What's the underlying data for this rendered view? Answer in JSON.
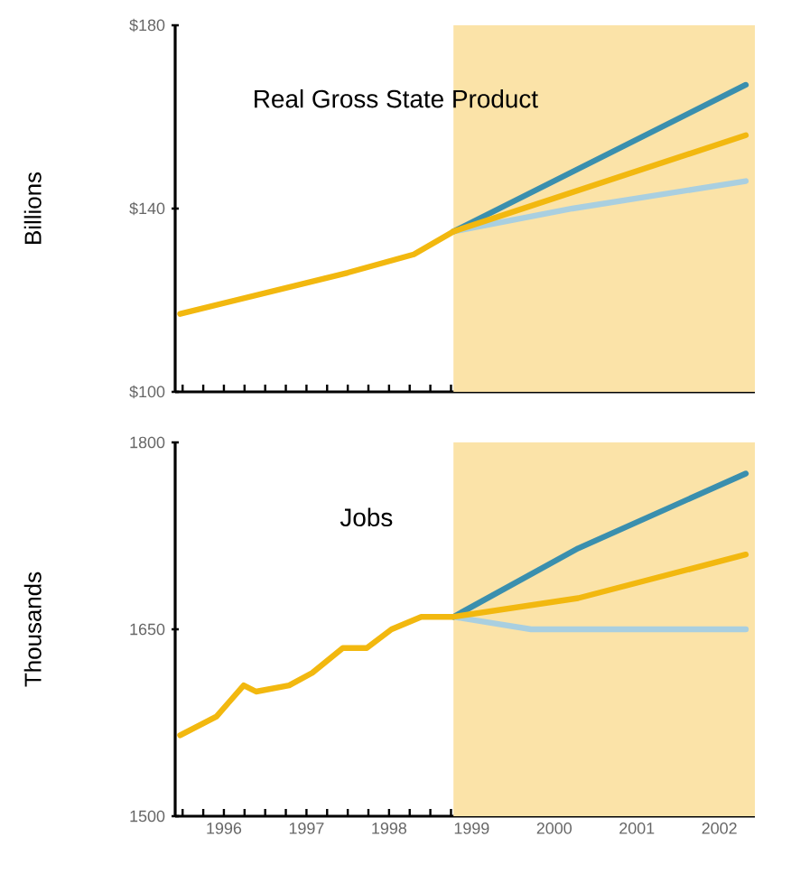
{
  "chart_data": [
    {
      "type": "line",
      "title": "Real Gross State Product",
      "ylabel": "Billions",
      "xlim": [
        1995.41,
        2002.43
      ],
      "ylim": [
        100,
        180
      ],
      "tick_labels": "y",
      "xticks": [
        {
          "value": 1995.5,
          "label": null
        },
        {
          "value": 1995.75,
          "label": null
        },
        {
          "value": 1996,
          "label": null
        },
        {
          "value": 1996.25,
          "label": null
        },
        {
          "value": 1996.5,
          "label": null
        },
        {
          "value": 1996.75,
          "label": null
        },
        {
          "value": 1997,
          "label": null
        },
        {
          "value": 1997.25,
          "label": null
        },
        {
          "value": 1997.5,
          "label": null
        },
        {
          "value": 1997.75,
          "label": null
        },
        {
          "value": 1998,
          "label": null
        },
        {
          "value": 1998.25,
          "label": null
        },
        {
          "value": 1998.5,
          "label": null
        },
        {
          "value": 1998.75,
          "label": null
        },
        {
          "value": 1999,
          "label": null
        },
        {
          "value": 1999.25,
          "label": null
        },
        {
          "value": 1999.5,
          "label": null
        },
        {
          "value": 1999.75,
          "label": null
        },
        {
          "value": 2000,
          "label": null
        },
        {
          "value": 2000.25,
          "label": null
        },
        {
          "value": 2000.5,
          "label": null
        },
        {
          "value": 2000.75,
          "label": null
        },
        {
          "value": 2001,
          "label": null
        },
        {
          "value": 2001.25,
          "label": null
        },
        {
          "value": 2001.5,
          "label": null
        },
        {
          "value": 2001.75,
          "label": null
        },
        {
          "value": 2002,
          "label": null
        },
        {
          "value": 2002.25,
          "label": null
        }
      ],
      "yticks": [
        {
          "value": 100,
          "label": "$100"
        },
        {
          "value": 140,
          "label": "$140"
        },
        {
          "value": 180,
          "label": "$180"
        }
      ],
      "bands": [
        {
          "axis": "x",
          "from": 1998.78,
          "to": 2002.43,
          "color": "#fbe3a8"
        }
      ],
      "series": [
        {
          "color": "#a9cfe0",
          "x": [
            1998.78,
            2000.22,
            2002.32
          ],
          "values": [
            135,
            140,
            146
          ]
        },
        {
          "color": "#3a8fae",
          "x": [
            1998.78,
            2002.32
          ],
          "values": [
            135,
            167
          ]
        },
        {
          "color": "#f2b80f",
          "x": [
            1995.47,
            1997.5,
            1998.3,
            1998.78,
            2002.32
          ],
          "values": [
            117,
            126,
            130,
            135,
            156
          ]
        }
      ]
    },
    {
      "type": "line",
      "title": "Jobs",
      "ylabel": "Thousands",
      "xlim": [
        1995.41,
        2002.43
      ],
      "ylim": [
        1500,
        1800
      ],
      "xticks": [
        {
          "value": 1995.5,
          "label": null
        },
        {
          "value": 1995.75,
          "label": null
        },
        {
          "value": 1996,
          "label": "1996"
        },
        {
          "value": 1996.25,
          "label": null
        },
        {
          "value": 1996.5,
          "label": null
        },
        {
          "value": 1996.75,
          "label": null
        },
        {
          "value": 1997,
          "label": "1997"
        },
        {
          "value": 1997.25,
          "label": null
        },
        {
          "value": 1997.5,
          "label": null
        },
        {
          "value": 1997.75,
          "label": null
        },
        {
          "value": 1998,
          "label": "1998"
        },
        {
          "value": 1998.25,
          "label": null
        },
        {
          "value": 1998.5,
          "label": null
        },
        {
          "value": 1998.75,
          "label": null
        },
        {
          "value": 1999,
          "label": "1999"
        },
        {
          "value": 1999.25,
          "label": null
        },
        {
          "value": 1999.5,
          "label": null
        },
        {
          "value": 1999.75,
          "label": null
        },
        {
          "value": 2000,
          "label": "2000"
        },
        {
          "value": 2000.25,
          "label": null
        },
        {
          "value": 2000.5,
          "label": null
        },
        {
          "value": 2000.75,
          "label": null
        },
        {
          "value": 2001,
          "label": "2001"
        },
        {
          "value": 2001.25,
          "label": null
        },
        {
          "value": 2001.5,
          "label": null
        },
        {
          "value": 2001.75,
          "label": null
        },
        {
          "value": 2002,
          "label": "2002"
        },
        {
          "value": 2002.25,
          "label": null
        }
      ],
      "yticks": [
        1500,
        1650,
        1800
      ],
      "bands": [
        {
          "axis": "x",
          "from": 1998.78,
          "to": 2002.43,
          "color": "#fbe3a8"
        }
      ],
      "series": [
        {
          "color": "#a9cfe0",
          "x": [
            1998.78,
            1999.72,
            2002.32
          ],
          "values": [
            1660,
            1650,
            1650
          ]
        },
        {
          "color": "#3a8fae",
          "x": [
            1998.78,
            2000.29,
            2002.32
          ],
          "values": [
            1660,
            1715,
            1775
          ]
        },
        {
          "color": "#f2b80f",
          "x": [
            1995.47,
            1995.91,
            1996.24,
            1996.39,
            1996.79,
            1997.07,
            1997.44,
            1997.73,
            1998.03,
            1998.39,
            1998.78,
            2000.29,
            2002.32
          ],
          "values": [
            1565,
            1580,
            1605,
            1600,
            1605,
            1615,
            1635,
            1635,
            1650,
            1660,
            1660,
            1675,
            1710
          ]
        }
      ]
    }
  ]
}
